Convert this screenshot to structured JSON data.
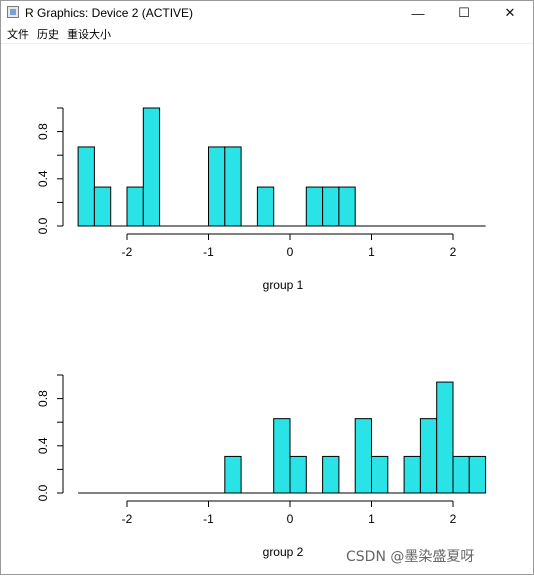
{
  "window": {
    "title": "R Graphics: Device 2 (ACTIVE)",
    "controls": {
      "minimize": "—",
      "maximize": "☐",
      "close": "✕"
    }
  },
  "menu": {
    "items": [
      "文件",
      "历史",
      "重设大小"
    ]
  },
  "watermark": "CSDN @墨染盛夏呀",
  "chart_data": [
    {
      "type": "bar",
      "xlabel": "group 1",
      "ylabel": "",
      "bar_color": "#2ae3e6",
      "xlim": [
        -2.5,
        2.4
      ],
      "ylim": [
        0,
        1
      ],
      "xticks": [
        -2,
        -1,
        0,
        1,
        2
      ],
      "yticks": [
        0.0,
        0.4,
        0.8
      ],
      "ytick_labels": [
        "0.0",
        "0.4",
        "0.8"
      ],
      "bin_width": 0.2,
      "bins": [
        {
          "start": -2.6,
          "value": 0.67
        },
        {
          "start": -2.4,
          "value": 0.33
        },
        {
          "start": -2.0,
          "value": 0.33
        },
        {
          "start": -1.8,
          "value": 1.0
        },
        {
          "start": -1.0,
          "value": 0.67
        },
        {
          "start": -0.8,
          "value": 0.67
        },
        {
          "start": -0.4,
          "value": 0.33
        },
        {
          "start": 0.2,
          "value": 0.33
        },
        {
          "start": 0.4,
          "value": 0.33
        },
        {
          "start": 0.6,
          "value": 0.33
        }
      ]
    },
    {
      "type": "bar",
      "xlabel": "group 2",
      "ylabel": "",
      "bar_color": "#2ae3e6",
      "xlim": [
        -2.5,
        2.4
      ],
      "ylim": [
        0,
        1
      ],
      "xticks": [
        -2,
        -1,
        0,
        1,
        2
      ],
      "yticks": [
        0.0,
        0.4,
        0.8
      ],
      "ytick_labels": [
        "0.0",
        "0.4",
        "0.8"
      ],
      "bin_width": 0.2,
      "bins": [
        {
          "start": -0.8,
          "value": 0.31
        },
        {
          "start": -0.2,
          "value": 0.63
        },
        {
          "start": 0.0,
          "value": 0.31
        },
        {
          "start": 0.4,
          "value": 0.31
        },
        {
          "start": 0.8,
          "value": 0.63
        },
        {
          "start": 1.0,
          "value": 0.31
        },
        {
          "start": 1.4,
          "value": 0.31
        },
        {
          "start": 1.6,
          "value": 0.63
        },
        {
          "start": 1.8,
          "value": 0.94
        },
        {
          "start": 2.0,
          "value": 0.31
        },
        {
          "start": 2.2,
          "value": 0.31
        }
      ]
    }
  ]
}
